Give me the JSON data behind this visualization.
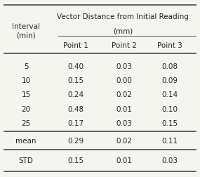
{
  "col_header_line1": "Vector Distance from Initial Reading",
  "col_header_line2": "(mm)",
  "col_header_row": [
    "Point 1",
    "Point 2",
    "Point 3"
  ],
  "row_header": [
    "Interval\n(min)",
    "5",
    "10",
    "15",
    "20",
    "25",
    "mean",
    "STD"
  ],
  "data": [
    [
      "0.40",
      "0.03",
      "0.08"
    ],
    [
      "0.15",
      "0.00",
      "0.09"
    ],
    [
      "0.24",
      "0.02",
      "0.14"
    ],
    [
      "0.48",
      "0.01",
      "0.10"
    ],
    [
      "0.17",
      "0.03",
      "0.15"
    ],
    [
      "0.29",
      "0.02",
      "0.11"
    ],
    [
      "0.15",
      "0.01",
      "0.03"
    ]
  ],
  "bg_color": "#f5f5f0",
  "text_color": "#222222",
  "line_color": "#555555",
  "font_size": 7.5
}
